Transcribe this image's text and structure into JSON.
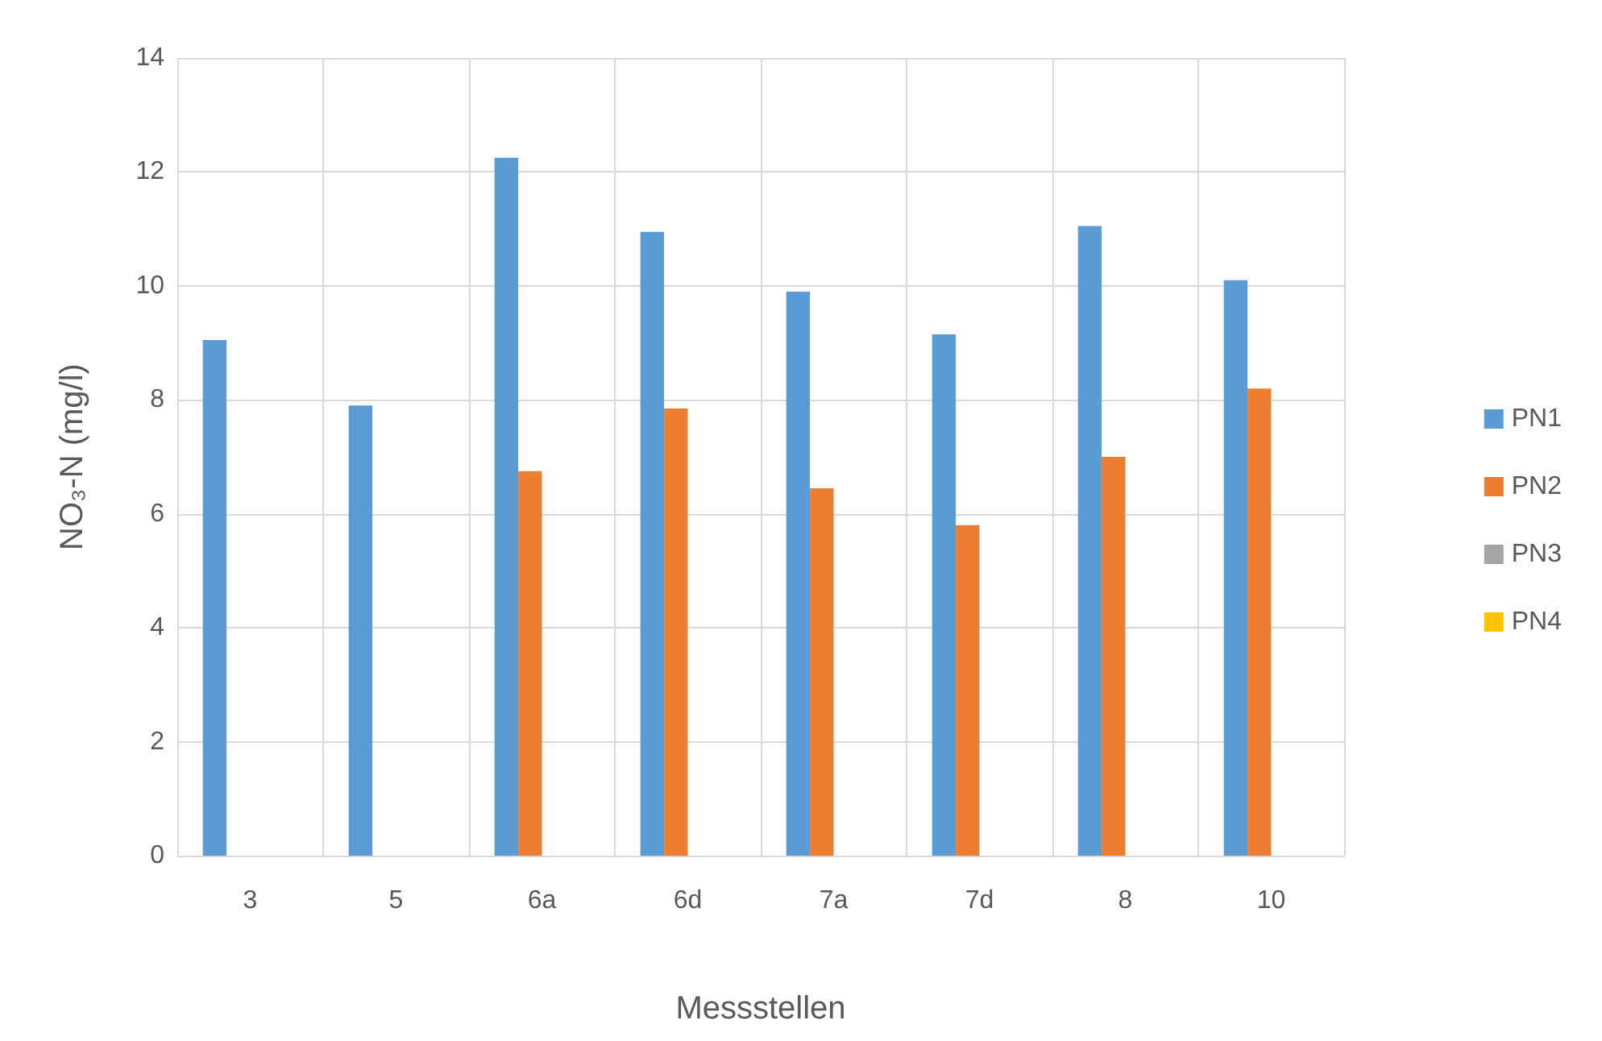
{
  "chart_data": {
    "type": "bar",
    "xlabel": "Messstellen",
    "ylabel": "NO₃-N (mg/l)",
    "categories": [
      "3",
      "5",
      "6a",
      "6d",
      "7a",
      "7d",
      "8",
      "10"
    ],
    "series": [
      {
        "name": "PN1",
        "color": "#5b9bd5",
        "values": [
          9.05,
          7.9,
          12.25,
          10.95,
          9.9,
          9.15,
          11.05,
          10.1
        ]
      },
      {
        "name": "PN2",
        "color": "#ed7d31",
        "values": [
          null,
          null,
          6.75,
          7.85,
          6.45,
          5.8,
          7.0,
          8.2
        ]
      },
      {
        "name": "PN3",
        "color": "#a5a5a5",
        "values": [
          null,
          null,
          null,
          null,
          null,
          null,
          null,
          null
        ]
      },
      {
        "name": "PN4",
        "color": "#ffc000",
        "values": [
          null,
          null,
          null,
          null,
          null,
          null,
          null,
          null
        ]
      }
    ],
    "ylim": [
      0,
      14
    ],
    "yticks": [
      0,
      2,
      4,
      6,
      8,
      10,
      12,
      14
    ],
    "grid": true,
    "legend": "right"
  }
}
